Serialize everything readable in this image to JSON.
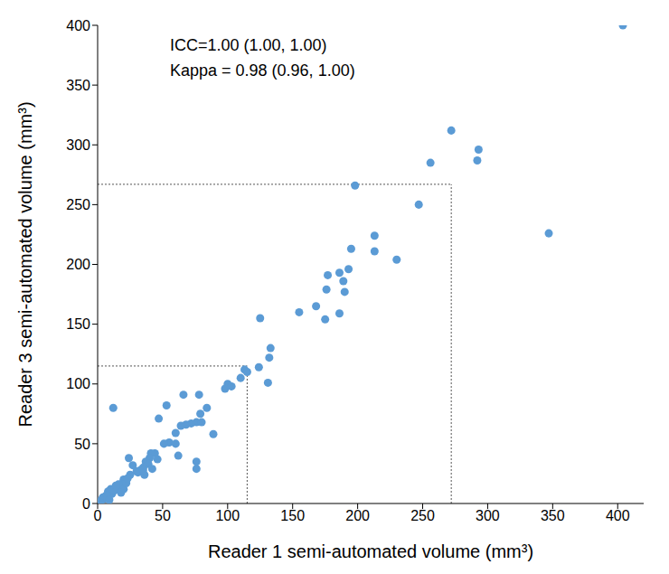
{
  "chart_data": {
    "type": "scatter",
    "x_label": "Reader 1 semi-automated volume (mm³)",
    "y_label": "Reader 3 semi-automated volume  (mm³)",
    "annotations": [
      "ICC=1.00 (1.00, 1.00)",
      "Kappa = 0.98 (0.96, 1.00)"
    ],
    "color": "#5b9bd5",
    "marker": "circle",
    "grid": false,
    "xlim": [
      0,
      420
    ],
    "xticks": [
      0,
      50,
      100,
      150,
      200,
      250,
      300,
      350,
      400
    ],
    "ylim": [
      0,
      400
    ],
    "yticks": [
      0,
      50,
      100,
      150,
      200,
      250,
      300,
      350,
      400
    ],
    "reference_lines": [
      {
        "x": 272,
        "y": 267
      },
      {
        "x": 115,
        "y": 115
      }
    ],
    "x": [
      404,
      272,
      256,
      293,
      292,
      347,
      247,
      198,
      230,
      213,
      213,
      195,
      193,
      190,
      186,
      189,
      177,
      176,
      186,
      168,
      175,
      155,
      125,
      133,
      132,
      131,
      124,
      113,
      110,
      115,
      100,
      98,
      103,
      78,
      66,
      84,
      89,
      79,
      76,
      72,
      68,
      80,
      64,
      60,
      53,
      47,
      55,
      51,
      60,
      62,
      76,
      76,
      44,
      41,
      40,
      37,
      39,
      35,
      33,
      31,
      36,
      42,
      24,
      25,
      27,
      20,
      18,
      15,
      12,
      10,
      11,
      8,
      6,
      5,
      3,
      4,
      7,
      13,
      16,
      14,
      20,
      22,
      18,
      9,
      2,
      23,
      30,
      46,
      35
    ],
    "values": [
      400,
      312,
      285,
      296,
      287,
      226,
      250,
      266,
      204,
      224,
      211,
      213,
      196,
      177,
      193,
      186,
      191,
      179,
      159,
      165,
      154,
      160,
      155,
      130,
      122,
      101,
      114,
      112,
      105,
      110,
      100,
      96,
      98,
      91,
      91,
      80,
      58,
      75,
      68,
      67,
      66,
      68,
      65,
      59,
      82,
      71,
      51,
      50,
      50,
      40,
      35,
      29,
      42,
      42,
      38,
      35,
      33,
      30,
      28,
      26,
      24,
      29,
      38,
      24,
      32,
      20,
      16,
      13,
      80,
      12,
      8,
      10,
      6,
      4,
      3,
      5,
      7,
      11,
      16,
      15,
      12,
      17,
      9,
      3,
      1,
      21,
      27,
      37,
      28
    ]
  }
}
